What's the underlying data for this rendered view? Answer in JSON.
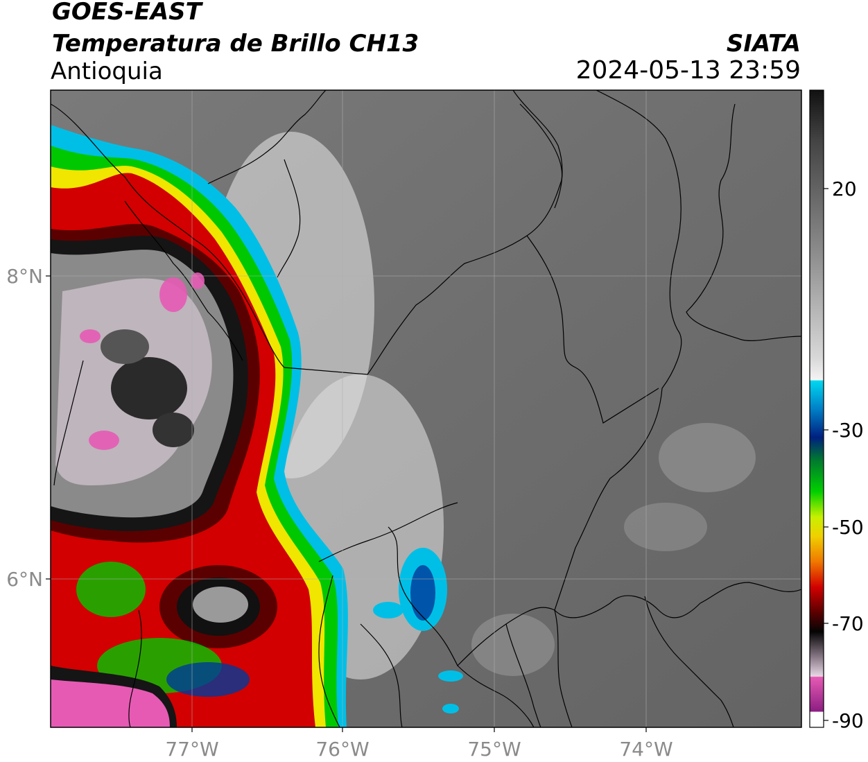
{
  "header": {
    "satellite": "GOES-EAST",
    "product": "Temperatura de Brillo CH13",
    "region": "Antioquia",
    "organization": "SIATA",
    "datetime": "2024-05-13 23:59"
  },
  "map": {
    "lat_labels": [
      "8°N",
      "6°N"
    ],
    "lon_labels": [
      "77°W",
      "76°W",
      "75°W",
      "74°W"
    ]
  },
  "colorbar": {
    "tick_labels": [
      "20",
      "-30",
      "-50",
      "-70",
      "-90"
    ],
    "colors": {
      "warm_black": "#111111",
      "gray_mid": "#888888",
      "white": "#f2f2f2",
      "cyan": "#00bfe6",
      "blue": "#003a9a",
      "green": "#00c800",
      "yellow": "#f0e600",
      "orange": "#f07800",
      "red": "#d20000",
      "dark_red": "#5a0000",
      "black": "#050505",
      "pink": "#e65ab4",
      "purple": "#8c1e82"
    }
  }
}
